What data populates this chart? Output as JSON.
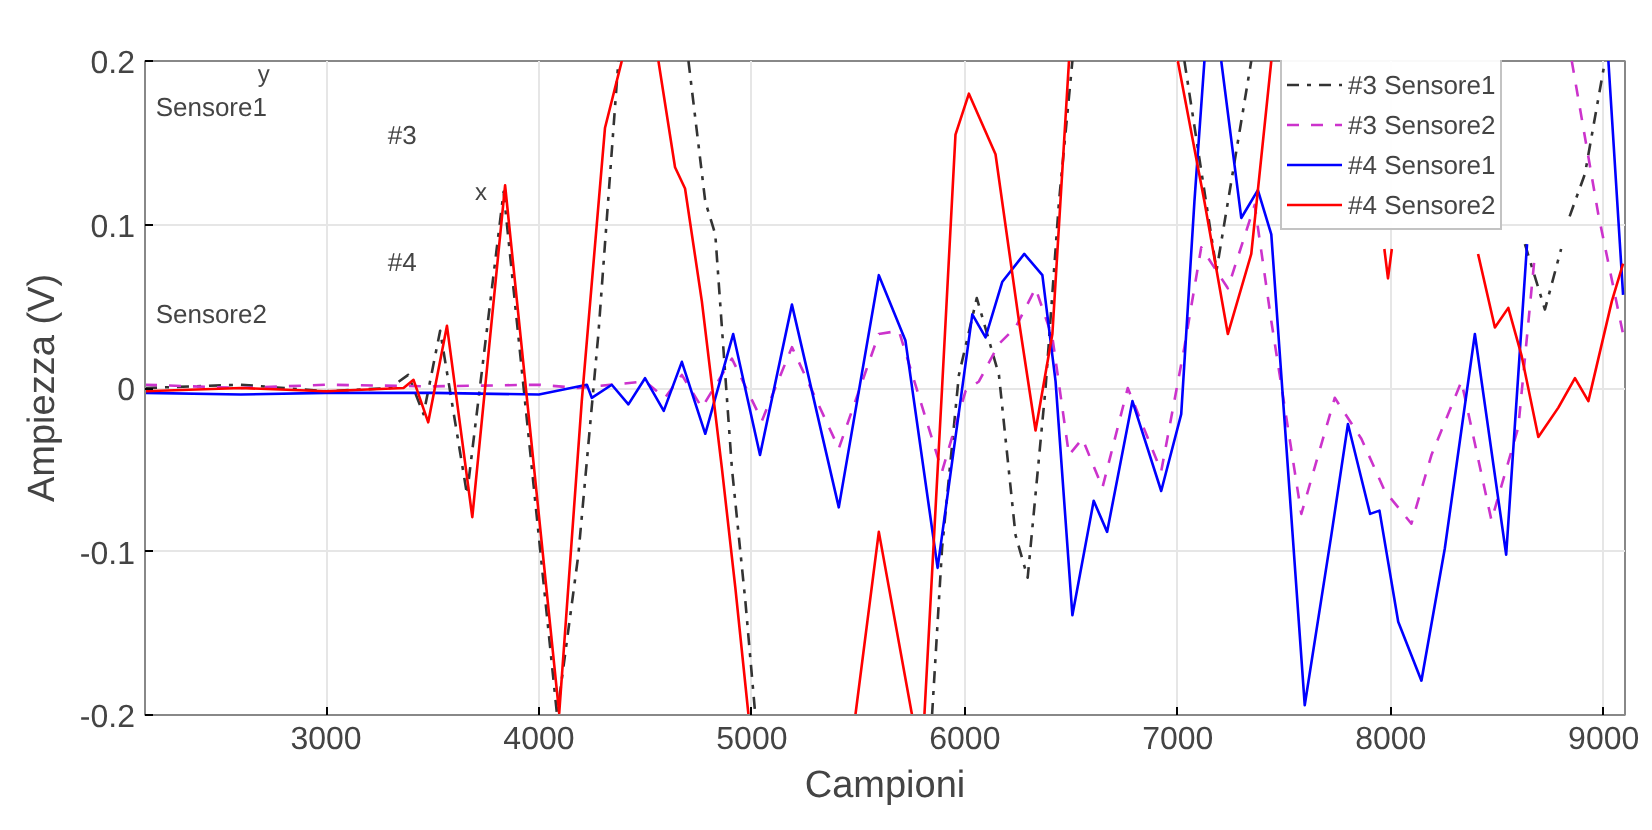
{
  "chart_data": {
    "type": "line",
    "xlabel": "Campioni",
    "ylabel": "Ampiezza (V)",
    "xlim": [
      2150,
      9100
    ],
    "xticks": [
      3000,
      4000,
      5000,
      6000,
      7000,
      8000,
      9000
    ],
    "ylim": [
      -0.2,
      0.2
    ],
    "yticks": [
      -0.2,
      -0.1,
      0,
      0.1,
      0.2
    ],
    "grid": true,
    "legend": "top right",
    "annotations": [
      "Sensore1",
      "Sensore2",
      "#3",
      "#4",
      "x",
      "y"
    ],
    "series": [
      {
        "name": "#3 Sensore1",
        "color": "#333333",
        "line_style": "dashdot",
        "x": [
          2150,
          2600,
          3000,
          3300,
          3386,
          3458,
          3536,
          3662,
          3834,
          4085,
          4185,
          4279,
          4373,
          4380,
          4700,
          4702,
          4781,
          4828,
          4906,
          4969,
          5016,
          5020,
          5840,
          5846,
          5893,
          5972,
          6056,
          6160,
          6238,
          6295,
          6379,
          6442,
          6505,
          6510,
          7025,
          7031,
          7182,
          7345,
          7350,
          8625,
          8630,
          8724,
          8800,
          8810,
          8835,
          8840,
          8912,
          9006
        ],
        "values": [
          0,
          0.002,
          -0.002,
          0,
          0.008,
          -0.016,
          0.035,
          -0.065,
          0.12,
          -0.2,
          -0.102,
          0.033,
          0.2,
          null,
          null,
          0.2,
          0.114,
          0.094,
          -0.049,
          -0.13,
          -0.2,
          null,
          null,
          -0.2,
          -0.098,
          0.008,
          0.055,
          0.008,
          -0.09,
          -0.116,
          0,
          0.114,
          0.2,
          null,
          null,
          0.2,
          0.072,
          0.2,
          null,
          null,
          0.088,
          0.048,
          0.085,
          null,
          null,
          0.105,
          0.131,
          0.2
        ]
      },
      {
        "name": "#3 Sensore2",
        "color": "#cc33cc",
        "line_style": "dashed",
        "x": [
          2150,
          2600,
          3000,
          3500,
          4000,
          4185,
          4498,
          4592,
          4671,
          4765,
          4906,
          5047,
          5188,
          5408,
          5596,
          5690,
          5893,
          6003,
          6066,
          6160,
          6238,
          6332,
          6411,
          6489,
          6552,
          6646,
          6765,
          6922,
          7031,
          7110,
          7235,
          7361,
          7439,
          7580,
          7737,
          7862,
          7972,
          8097,
          8191,
          8332,
          8473,
          8599,
          8677,
          8690,
          8840,
          8850,
          8975,
          9091
        ],
        "values": [
          0.002,
          0,
          0.002,
          0.001,
          0.002,
          0,
          0.004,
          -0.006,
          0.008,
          -0.012,
          0.018,
          -0.02,
          0.025,
          -0.037,
          0.033,
          0.035,
          -0.051,
          -0.002,
          0.004,
          0.027,
          0.037,
          0.061,
          0.031,
          -0.041,
          -0.031,
          -0.061,
          0,
          -0.051,
          0.025,
          0.086,
          0.061,
          0.112,
          0.041,
          -0.077,
          -0.006,
          -0.031,
          -0.063,
          -0.083,
          -0.041,
          0.004,
          -0.081,
          -0.024,
          0.082,
          null,
          null,
          0.2,
          0.106,
          0.033
        ]
      },
      {
        "name": "#4 Sensore1",
        "color": "#0000ff",
        "line_style": "solid",
        "x": [
          2150,
          2600,
          3000,
          3500,
          4000,
          4225,
          4248,
          4342,
          4420,
          4498,
          4586,
          4671,
          4781,
          4912,
          5038,
          5188,
          5408,
          5596,
          5721,
          5872,
          6035,
          6097,
          6176,
          6279,
          6364,
          6426,
          6505,
          6605,
          6668,
          6787,
          6922,
          7016,
          7078,
          7125,
          7130,
          7200,
          7204,
          7298,
          7376,
          7439,
          7517,
          7596,
          7721,
          7799,
          7903,
          7947,
          8035,
          8144,
          8254,
          8395,
          8542,
          8640,
          8650,
          9015,
          9022,
          9091
        ],
        "values": [
          -0.003,
          -0.004,
          -0.003,
          -0.003,
          -0.004,
          0.002,
          -0.006,
          0.002,
          -0.01,
          0.006,
          -0.014,
          0.016,
          -0.028,
          0.033,
          -0.041,
          0.051,
          -0.073,
          0.069,
          0.029,
          -0.11,
          0.045,
          0.031,
          0.065,
          0.082,
          0.069,
          0.004,
          -0.139,
          -0.069,
          -0.088,
          -0.008,
          -0.063,
          -0.016,
          0.114,
          0.2,
          null,
          null,
          0.2,
          0.104,
          0.121,
          0.094,
          -0.049,
          -0.194,
          -0.09,
          -0.022,
          -0.077,
          -0.075,
          -0.143,
          -0.179,
          -0.098,
          0.033,
          -0.102,
          0.088,
          null,
          null,
          0.2,
          0.057
        ]
      },
      {
        "name": "#4 Sensore2",
        "color": "#ff0000",
        "line_style": "solid",
        "x": [
          2150,
          2600,
          3000,
          3364,
          3411,
          3480,
          3568,
          3687,
          3841,
          4095,
          4201,
          4310,
          4389,
          4395,
          4555,
          4561,
          4639,
          4686,
          4765,
          4859,
          4922,
          4984,
          4990,
          5480,
          5486,
          5596,
          5752,
          5760,
          5800,
          5810,
          5893,
          5956,
          6019,
          6144,
          6254,
          6332,
          6411,
          6489,
          6495,
          6995,
          7000,
          7125,
          7235,
          7345,
          7439,
          7445,
          7965,
          7970,
          7987,
          8005,
          8010,
          8400,
          8410,
          8489,
          8552,
          8614,
          8693,
          8787,
          8865,
          8928,
          9038,
          9091
        ],
        "values": [
          -0.002,
          0,
          -0.002,
          0,
          0.005,
          -0.021,
          0.038,
          -0.079,
          0.124,
          -0.199,
          -0.008,
          0.159,
          0.2,
          null,
          null,
          0.2,
          0.135,
          0.122,
          0.053,
          -0.049,
          -0.122,
          -0.2,
          null,
          null,
          -0.2,
          -0.088,
          -0.2,
          null,
          null,
          -0.2,
          0,
          0.155,
          0.18,
          0.143,
          0.041,
          -0.026,
          0.033,
          0.2,
          null,
          null,
          0.2,
          0.114,
          0.033,
          0.082,
          0.2,
          null,
          null,
          0.085,
          0.067,
          0.085,
          null,
          null,
          0.082,
          0.037,
          0.049,
          0.02,
          -0.03,
          -0.012,
          0.006,
          -0.008,
          0.053,
          0.076
        ]
      }
    ]
  }
}
